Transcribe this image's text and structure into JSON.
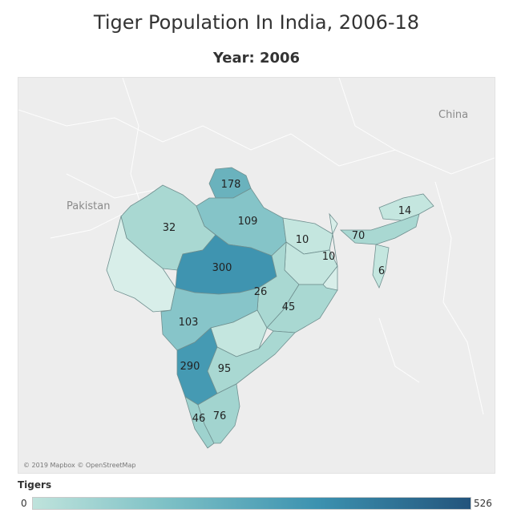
{
  "title": "Tiger Population In India, 2006-18",
  "subtitle": "Year: 2006",
  "map": {
    "labels": {
      "pakistan": "Pakistan",
      "china": "China"
    },
    "attribution": "© 2019 Mapbox © OpenStreetMap",
    "states": {
      "uttarakhand": "178",
      "uttar_pradesh": "109",
      "rajasthan": "32",
      "bihar": "10",
      "jharkhand": "10",
      "madhya_pradesh": "300",
      "chhattisgarh": "26",
      "odisha": "45",
      "maharashtra": "103",
      "karnataka": "290",
      "andhra_pradesh": "95",
      "kerala": "46",
      "tamil_nadu": "76",
      "assam": "70",
      "arunachal_pradesh": "14",
      "mizoram": "6"
    },
    "colors": {
      "low": "#bfe3dc",
      "mid": "#7ec1c6",
      "high": "#3c92b0",
      "max": "#23547c",
      "background": "#ededed"
    }
  },
  "legend": {
    "title": "Tigers",
    "min": "0",
    "max": "526"
  }
}
